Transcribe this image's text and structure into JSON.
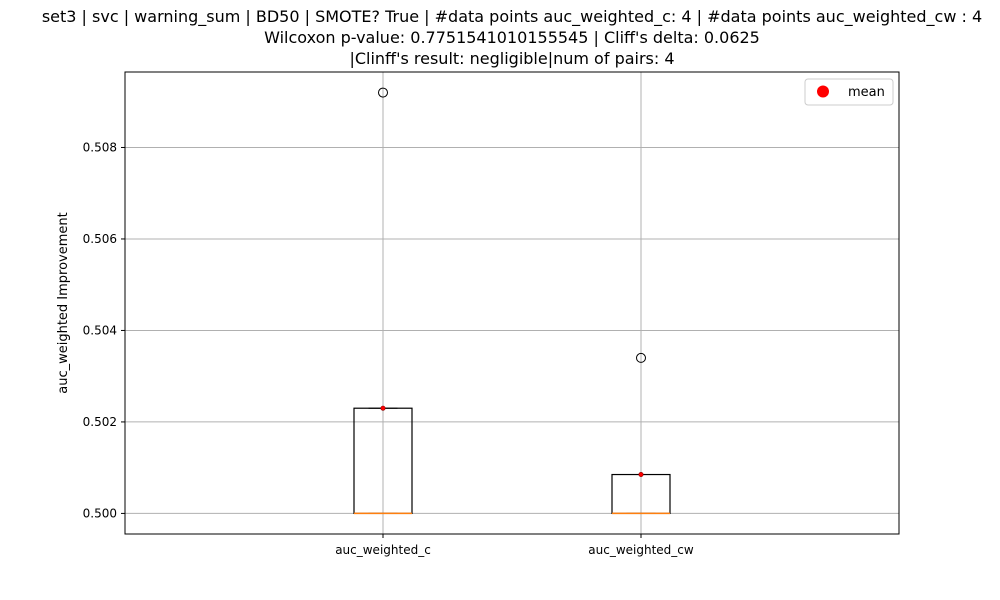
{
  "title_lines": [
    "set3 | svc | warning_sum | BD50 | SMOTE? True | #data points auc_weighted_c: 4 | #data points auc_weighted_cw : 4",
    "Wilcoxon p-value: 0.7751541010155545 | Cliff's delta: 0.0625",
    "|Clinff's result: negligible|num of pairs: 4"
  ],
  "chart_data": {
    "type": "box",
    "title": "set3 | svc | warning_sum | BD50 | SMOTE? True | #data points auc_weighted_c: 4 | #data points auc_weighted_cw : 4\nWilcoxon p-value: 0.7751541010155545 | Cliff's delta: 0.0625\n|Clinff's result: negligible|num of pairs: 4",
    "xlabel": "",
    "ylabel": "auc_weighted Improvement",
    "categories": [
      "auc_weighted_c",
      "auc_weighted_cw"
    ],
    "ylim": [
      0.49955,
      0.50965
    ],
    "yticks": [
      0.5,
      0.502,
      0.504,
      0.506,
      0.508
    ],
    "ytick_labels": [
      "0.500",
      "0.502",
      "0.504",
      "0.506",
      "0.508"
    ],
    "grid": true,
    "legend": {
      "entries": [
        "mean"
      ],
      "placement": "top-right"
    },
    "boxes": [
      {
        "name": "auc_weighted_c",
        "whisker_low": 0.5,
        "q1": 0.5,
        "median": 0.5,
        "q3": 0.5023,
        "whisker_high": 0.5023,
        "mean": 0.5023,
        "outliers": [
          0.5092
        ]
      },
      {
        "name": "auc_weighted_cw",
        "whisker_low": 0.5,
        "q1": 0.5,
        "median": 0.5,
        "q3": 0.50085,
        "whisker_high": 0.50085,
        "mean": 0.50085,
        "outliers": [
          0.5034
        ]
      }
    ],
    "colors": {
      "box": "#000000",
      "median": "#ff7f0e",
      "mean": "#ff0000",
      "grid": "#b0b0b0"
    }
  }
}
